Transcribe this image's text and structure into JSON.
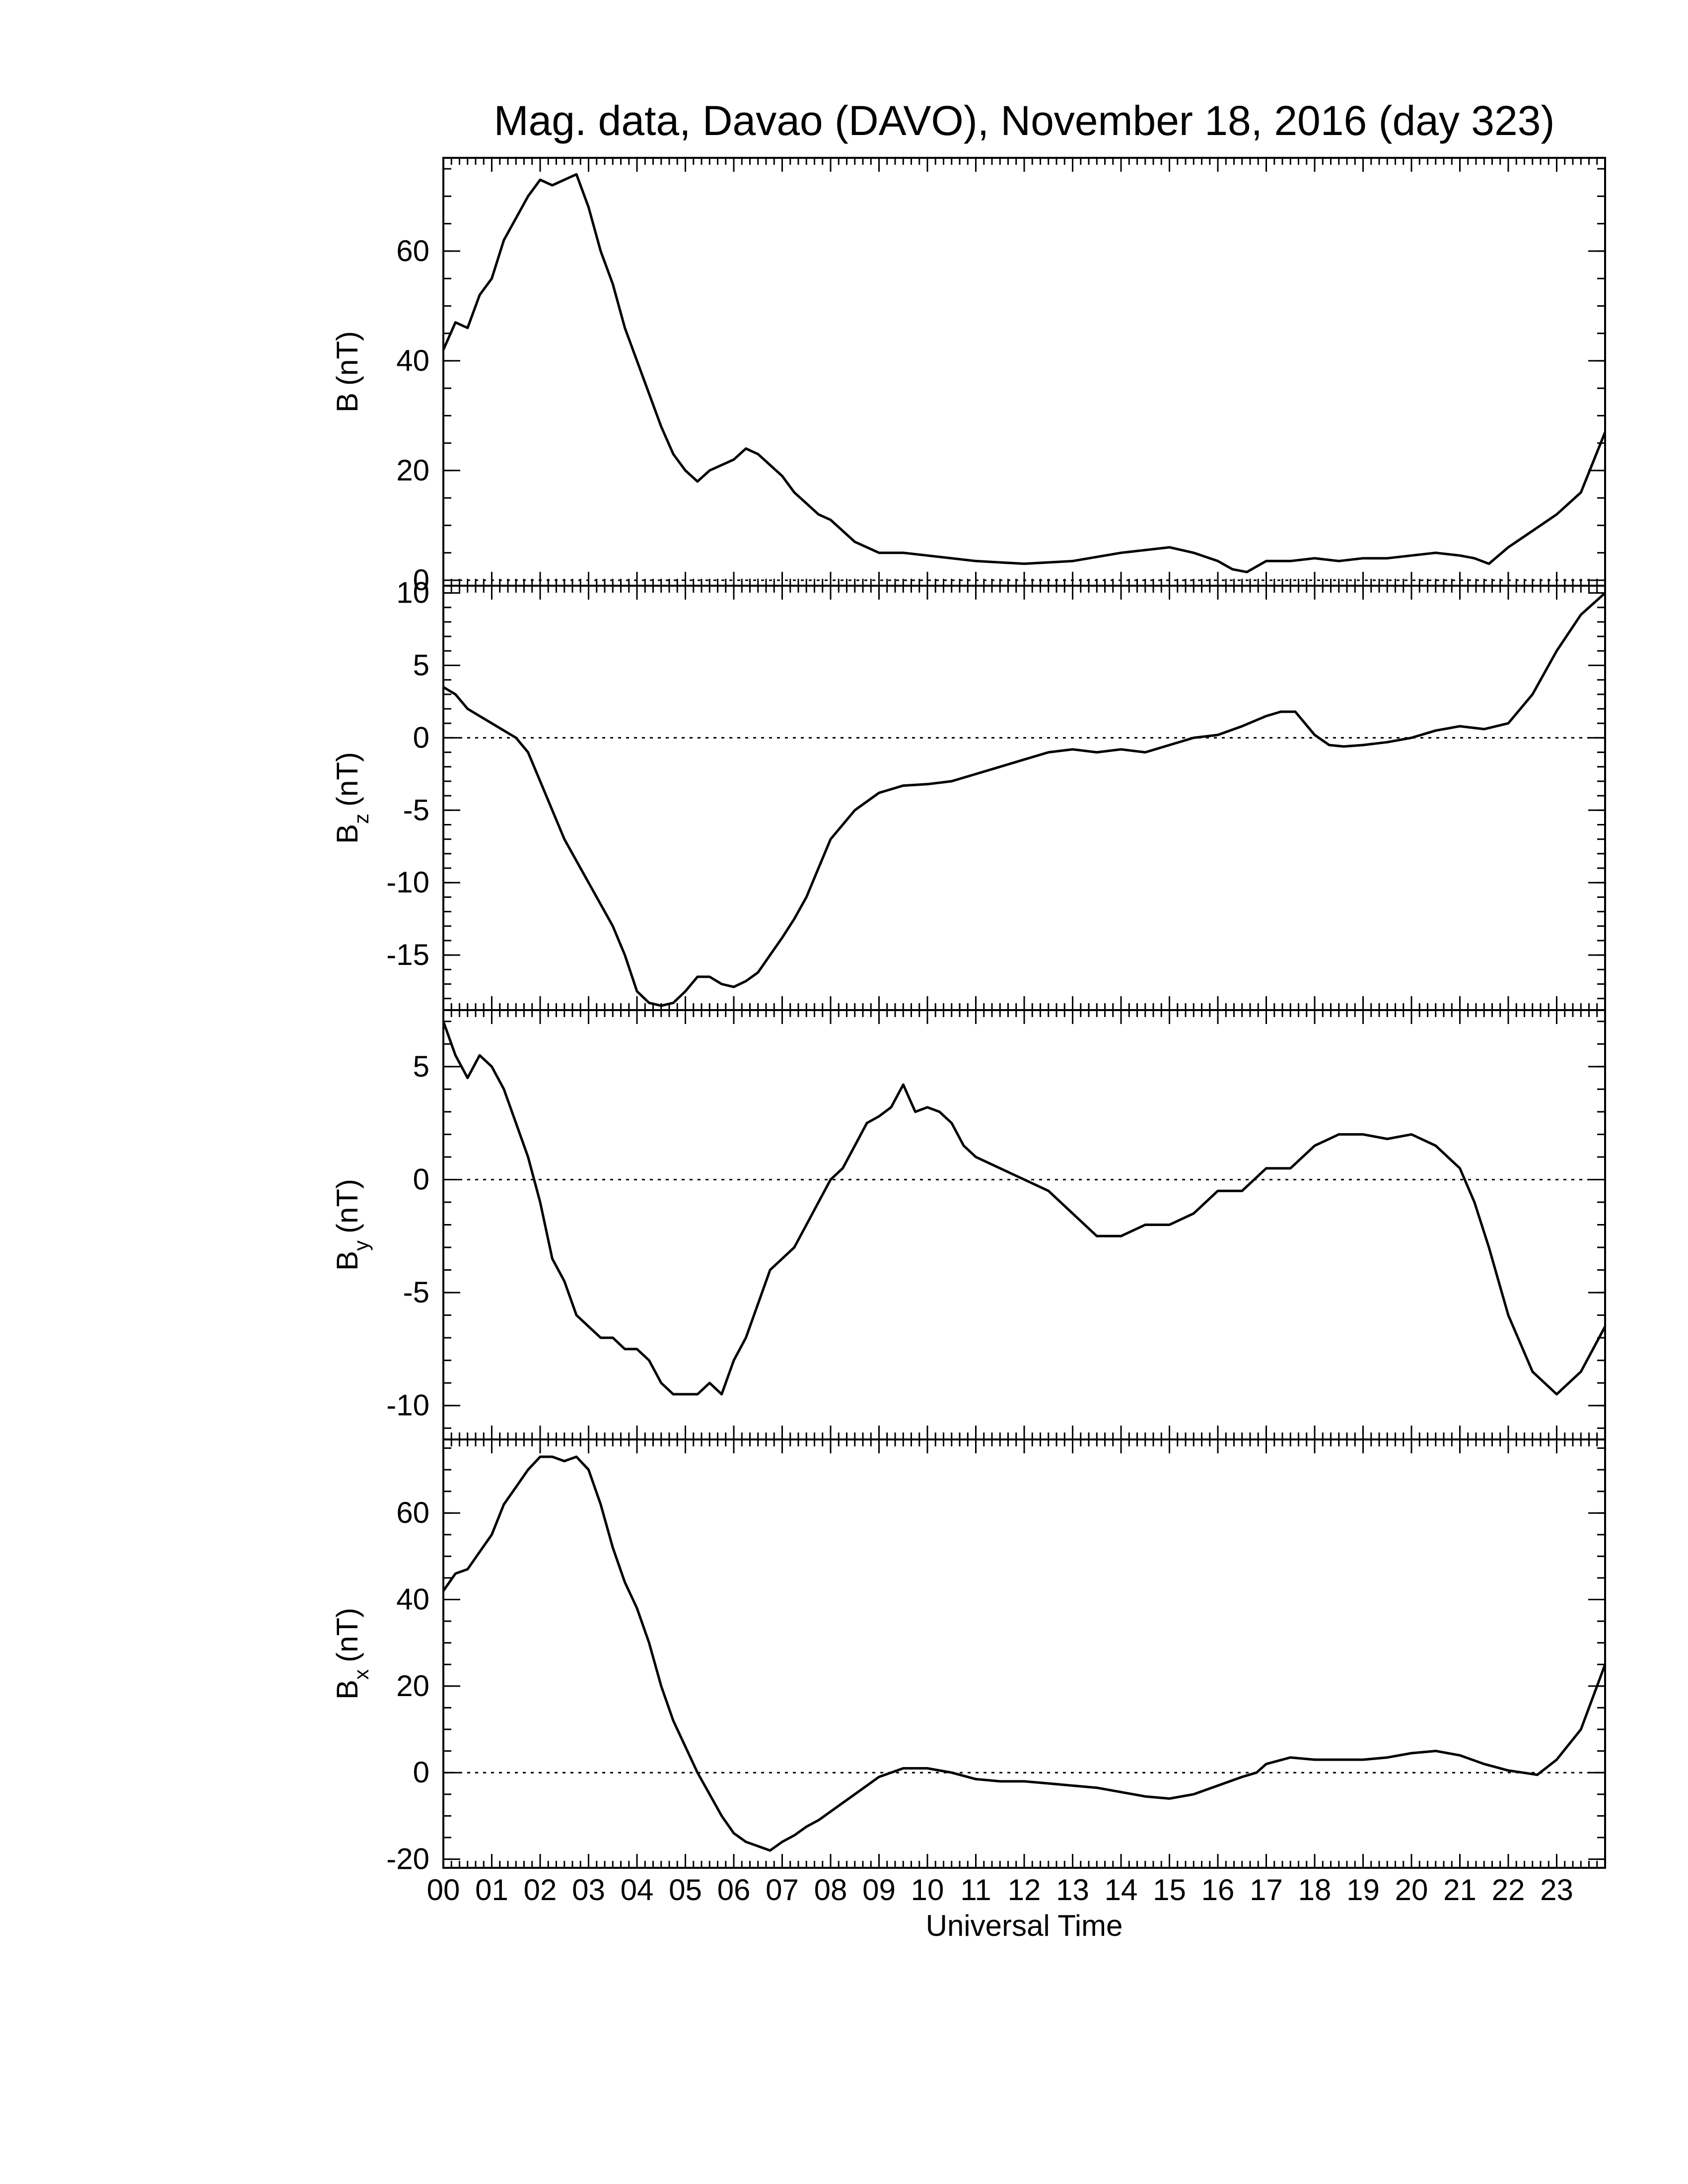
{
  "chart_data": {
    "type": "line",
    "title": "Mag. data, Davao (DAVO), November 18, 2016 (day 323)",
    "xlabel": "Universal Time",
    "x_tick_labels": [
      "00",
      "01",
      "02",
      "03",
      "04",
      "05",
      "06",
      "07",
      "08",
      "09",
      "10",
      "11",
      "12",
      "13",
      "14",
      "15",
      "16",
      "17",
      "18",
      "19",
      "20",
      "21",
      "22",
      "23"
    ],
    "xlim": [
      0,
      24
    ],
    "line_color": "#000000",
    "zero_line": "dotted",
    "panels": [
      {
        "id": "B",
        "ylabel_main": "B",
        "ylabel_sub": "",
        "ylabel_unit": "(nT)",
        "ylim": [
          -1,
          77
        ],
        "yticks": [
          0,
          20,
          40,
          60
        ],
        "ytick_labels": [
          "0",
          "20",
          "40",
          "60"
        ],
        "minor_step": 5,
        "x": [
          0,
          0.25,
          0.5,
          0.75,
          1,
          1.25,
          1.5,
          1.75,
          2,
          2.25,
          2.5,
          2.75,
          3,
          3.25,
          3.5,
          3.75,
          4,
          4.25,
          4.5,
          4.75,
          5,
          5.25,
          5.5,
          5.75,
          6,
          6.25,
          6.5,
          6.75,
          7,
          7.25,
          7.5,
          7.75,
          8,
          8.5,
          9,
          9.5,
          10,
          11,
          12,
          13,
          14,
          14.5,
          15,
          15.5,
          16,
          16.3,
          16.6,
          17,
          17.5,
          18,
          18.5,
          19,
          19.5,
          20,
          20.5,
          21,
          21.3,
          21.6,
          22,
          22.5,
          23,
          23.5,
          24
        ],
        "y": [
          42,
          47,
          46,
          52,
          55,
          62,
          66,
          70,
          73,
          72,
          73,
          74,
          68,
          60,
          54,
          46,
          40,
          34,
          28,
          23,
          20,
          18,
          20,
          21,
          22,
          24,
          23,
          21,
          19,
          16,
          14,
          12,
          11,
          7,
          5,
          5,
          4.5,
          3.5,
          3,
          3.5,
          5,
          5.5,
          6,
          5,
          3.5,
          2,
          1.5,
          3.5,
          3.5,
          4,
          3.5,
          4,
          4,
          4.5,
          5,
          4.5,
          4,
          3,
          6,
          9,
          12,
          16,
          27
        ]
      },
      {
        "id": "Bz",
        "ylabel_main": "B",
        "ylabel_sub": "z",
        "ylabel_unit": "(nT)",
        "ylim": [
          -18.8,
          10.5
        ],
        "yticks": [
          -15,
          -10,
          -5,
          0,
          5,
          10
        ],
        "ytick_labels": [
          "-15",
          "-10",
          "-5",
          "0",
          "5",
          "10"
        ],
        "minor_step": 1,
        "x": [
          0,
          0.25,
          0.5,
          0.75,
          1,
          1.25,
          1.5,
          1.75,
          2,
          2.25,
          2.5,
          2.75,
          3,
          3.25,
          3.5,
          3.75,
          4,
          4.25,
          4.5,
          4.75,
          5,
          5.25,
          5.5,
          5.75,
          6,
          6.25,
          6.5,
          6.75,
          7,
          7.25,
          7.5,
          7.75,
          8,
          8.5,
          9,
          9.5,
          10,
          10.5,
          11,
          11.5,
          12,
          12.5,
          13,
          13.5,
          14,
          14.5,
          15,
          15.5,
          16,
          16.5,
          17,
          17.3,
          17.6,
          18,
          18.3,
          18.6,
          19,
          19.5,
          20,
          20.5,
          21,
          21.5,
          22,
          22.5,
          23,
          23.5,
          24
        ],
        "y": [
          3.5,
          3,
          2,
          1.5,
          1,
          0.5,
          0,
          -1,
          -3,
          -5,
          -7,
          -8.5,
          -10,
          -11.5,
          -13,
          -15,
          -17.5,
          -18.3,
          -18.5,
          -18.3,
          -17.5,
          -16.5,
          -16.5,
          -17,
          -17.2,
          -16.8,
          -16.2,
          -15,
          -13.8,
          -12.5,
          -11,
          -9,
          -7,
          -5,
          -3.8,
          -3.3,
          -3.2,
          -3,
          -2.5,
          -2,
          -1.5,
          -1,
          -0.8,
          -1,
          -0.8,
          -1,
          -0.5,
          0,
          0.2,
          0.8,
          1.5,
          1.8,
          1.8,
          0.2,
          -0.5,
          -0.6,
          -0.5,
          -0.3,
          0,
          0.5,
          0.8,
          0.6,
          1,
          3,
          6,
          8.5,
          10
        ]
      },
      {
        "id": "By",
        "ylabel_main": "B",
        "ylabel_sub": "y",
        "ylabel_unit": "(nT)",
        "ylim": [
          -11.5,
          7.5
        ],
        "yticks": [
          -10,
          -5,
          0,
          5
        ],
        "ytick_labels": [
          "-10",
          "-5",
          "0",
          "5"
        ],
        "minor_step": 1,
        "x": [
          0,
          0.25,
          0.5,
          0.75,
          1,
          1.25,
          1.5,
          1.75,
          2,
          2.25,
          2.5,
          2.75,
          3,
          3.25,
          3.5,
          3.75,
          4,
          4.25,
          4.5,
          4.75,
          5,
          5.25,
          5.5,
          5.75,
          6,
          6.25,
          6.5,
          6.75,
          7,
          7.25,
          7.5,
          7.75,
          8,
          8.25,
          8.5,
          8.75,
          9,
          9.25,
          9.5,
          9.75,
          10,
          10.25,
          10.5,
          10.75,
          11,
          11.5,
          12,
          12.5,
          13,
          13.5,
          14,
          14.5,
          15,
          15.5,
          16,
          16.5,
          17,
          17.5,
          18,
          18.5,
          19,
          19.5,
          20,
          20.5,
          21,
          21.3,
          21.6,
          22,
          22.5,
          23,
          23.5,
          24
        ],
        "y": [
          7,
          5.5,
          4.5,
          5.5,
          5,
          4,
          2.5,
          1,
          -1,
          -3.5,
          -4.5,
          -6,
          -6.5,
          -7,
          -7,
          -7.5,
          -7.5,
          -8,
          -9,
          -9.5,
          -9.5,
          -9.5,
          -9,
          -9.5,
          -8,
          -7,
          -5.5,
          -4,
          -3.5,
          -3,
          -2,
          -1,
          0,
          0.5,
          1.5,
          2.5,
          2.8,
          3.2,
          4.2,
          3,
          3.2,
          3,
          2.5,
          1.5,
          1,
          0.5,
          0,
          -0.5,
          -1.5,
          -2.5,
          -2.5,
          -2,
          -2,
          -1.5,
          -0.5,
          -0.5,
          0.5,
          0.5,
          1.5,
          2,
          2,
          1.8,
          2,
          1.5,
          0.5,
          -1,
          -3,
          -6,
          -8.5,
          -9.5,
          -8.5,
          -6.5
        ]
      },
      {
        "id": "Bx",
        "ylabel_main": "B",
        "ylabel_sub": "x",
        "ylabel_unit": "(nT)",
        "ylim": [
          -22,
          77
        ],
        "yticks": [
          -20,
          0,
          20,
          40,
          60
        ],
        "ytick_labels": [
          "-20",
          "0",
          "20",
          "40",
          "60"
        ],
        "minor_step": 5,
        "x": [
          0,
          0.25,
          0.5,
          0.75,
          1,
          1.25,
          1.5,
          1.75,
          2,
          2.25,
          2.5,
          2.75,
          3,
          3.25,
          3.5,
          3.75,
          4,
          4.25,
          4.5,
          4.75,
          5,
          5.25,
          5.5,
          5.75,
          6,
          6.25,
          6.5,
          6.75,
          7,
          7.25,
          7.5,
          7.75,
          8,
          8.5,
          9,
          9.5,
          10,
          10.5,
          11,
          11.5,
          12,
          12.5,
          13,
          13.5,
          14,
          14.5,
          15,
          15.5,
          16,
          16.5,
          16.8,
          17,
          17.5,
          18,
          18.5,
          19,
          19.5,
          20,
          20.5,
          21,
          21.5,
          22,
          22.3,
          22.6,
          23,
          23.5,
          24
        ],
        "y": [
          42,
          46,
          47,
          51,
          55,
          62,
          66,
          70,
          73,
          73,
          72,
          73,
          70,
          62,
          52,
          44,
          38,
          30,
          20,
          12,
          6,
          0,
          -5,
          -10,
          -14,
          -16,
          -17,
          -18,
          -16,
          -14.5,
          -12.5,
          -11,
          -9,
          -5,
          -1,
          1,
          1,
          0,
          -1.5,
          -2,
          -2,
          -2.5,
          -3,
          -3.5,
          -4.5,
          -5.5,
          -6,
          -5,
          -3,
          -1,
          0,
          2,
          3.5,
          3,
          3,
          3,
          3.5,
          4.5,
          5,
          4,
          2,
          0.5,
          0,
          -0.5,
          3,
          10,
          25
        ]
      }
    ]
  }
}
